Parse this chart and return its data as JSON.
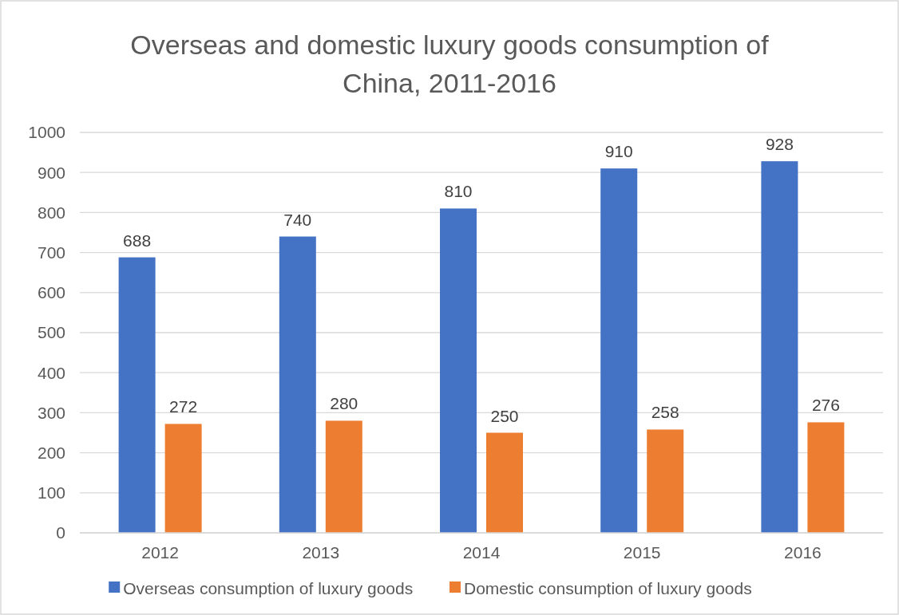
{
  "chart_data": {
    "type": "bar",
    "title": "Overseas and domestic luxury goods consumption of China, 2011-2016",
    "categories": [
      "2012",
      "2013",
      "2014",
      "2015",
      "2016"
    ],
    "series": [
      {
        "name": "Overseas consumption of luxury goods",
        "color": "#4472c4",
        "values": [
          688,
          740,
          810,
          910,
          928
        ]
      },
      {
        "name": "Domestic consumption of luxury goods",
        "color": "#ed7d31",
        "values": [
          272,
          280,
          250,
          258,
          276
        ]
      }
    ],
    "ylim": [
      0,
      1000
    ],
    "yticks": [
      0,
      100,
      200,
      300,
      400,
      500,
      600,
      700,
      800,
      900,
      1000
    ],
    "grid": "y",
    "legend": "bottom",
    "data_labels": true
  }
}
